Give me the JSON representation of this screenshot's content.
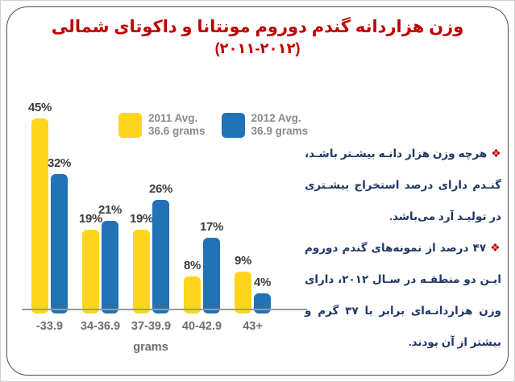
{
  "slide": {
    "border_color": "#4d4d4d",
    "title": {
      "line1": "وزن هزاردانه گندم دوروم مونتانا و داکوتای شمالی",
      "line2": "(۲۰۱۱-۲۰۱۲)",
      "color": "#C00000"
    },
    "bullets": [
      {
        "marker": "❖",
        "text": "هرچه وزن هزار دانـه بیشـتر باشـد، گنـدم دارای درصد استخراج بیشـتری در تولیـد آرد می‌باشد."
      },
      {
        "marker": "❖",
        "text": "۴۷ درصد از نمونه‌های گندم دوروم ایـن دو منطقـه در سـال ۲۰۱۲، دارای وزن هزاردانـه‌ای برابر با ۳۷ گرم و بیشتر از آن بودند."
      }
    ]
  },
  "chart_data": {
    "type": "bar",
    "title": "",
    "categories": [
      "-33.9",
      "34-36.9",
      "37-39.9",
      "40-42.9",
      "43+"
    ],
    "series": [
      {
        "name": "2011 Avg. 36.6 grams",
        "color": "#FFD41C",
        "values": [
          45,
          19,
          19,
          8,
          9
        ]
      },
      {
        "name": "2012 Avg. 36.9 grams",
        "color": "#2272B6",
        "values": [
          32,
          21,
          26,
          17,
          4
        ]
      }
    ],
    "legend": [
      {
        "line1": "2011 Avg.",
        "line2": "36.6 grams"
      },
      {
        "line1": "2012 Avg.",
        "line2": "36.9 grams"
      }
    ],
    "value_suffix": "%",
    "xlabel": "grams",
    "ylim": [
      0,
      50
    ],
    "grid": false,
    "legend_position": "inside-top",
    "label_color": "#3d3d3d",
    "tick_color": "#6e6e6e",
    "legend_text_color": "#8a8a8a",
    "axis_color": "#999999"
  }
}
